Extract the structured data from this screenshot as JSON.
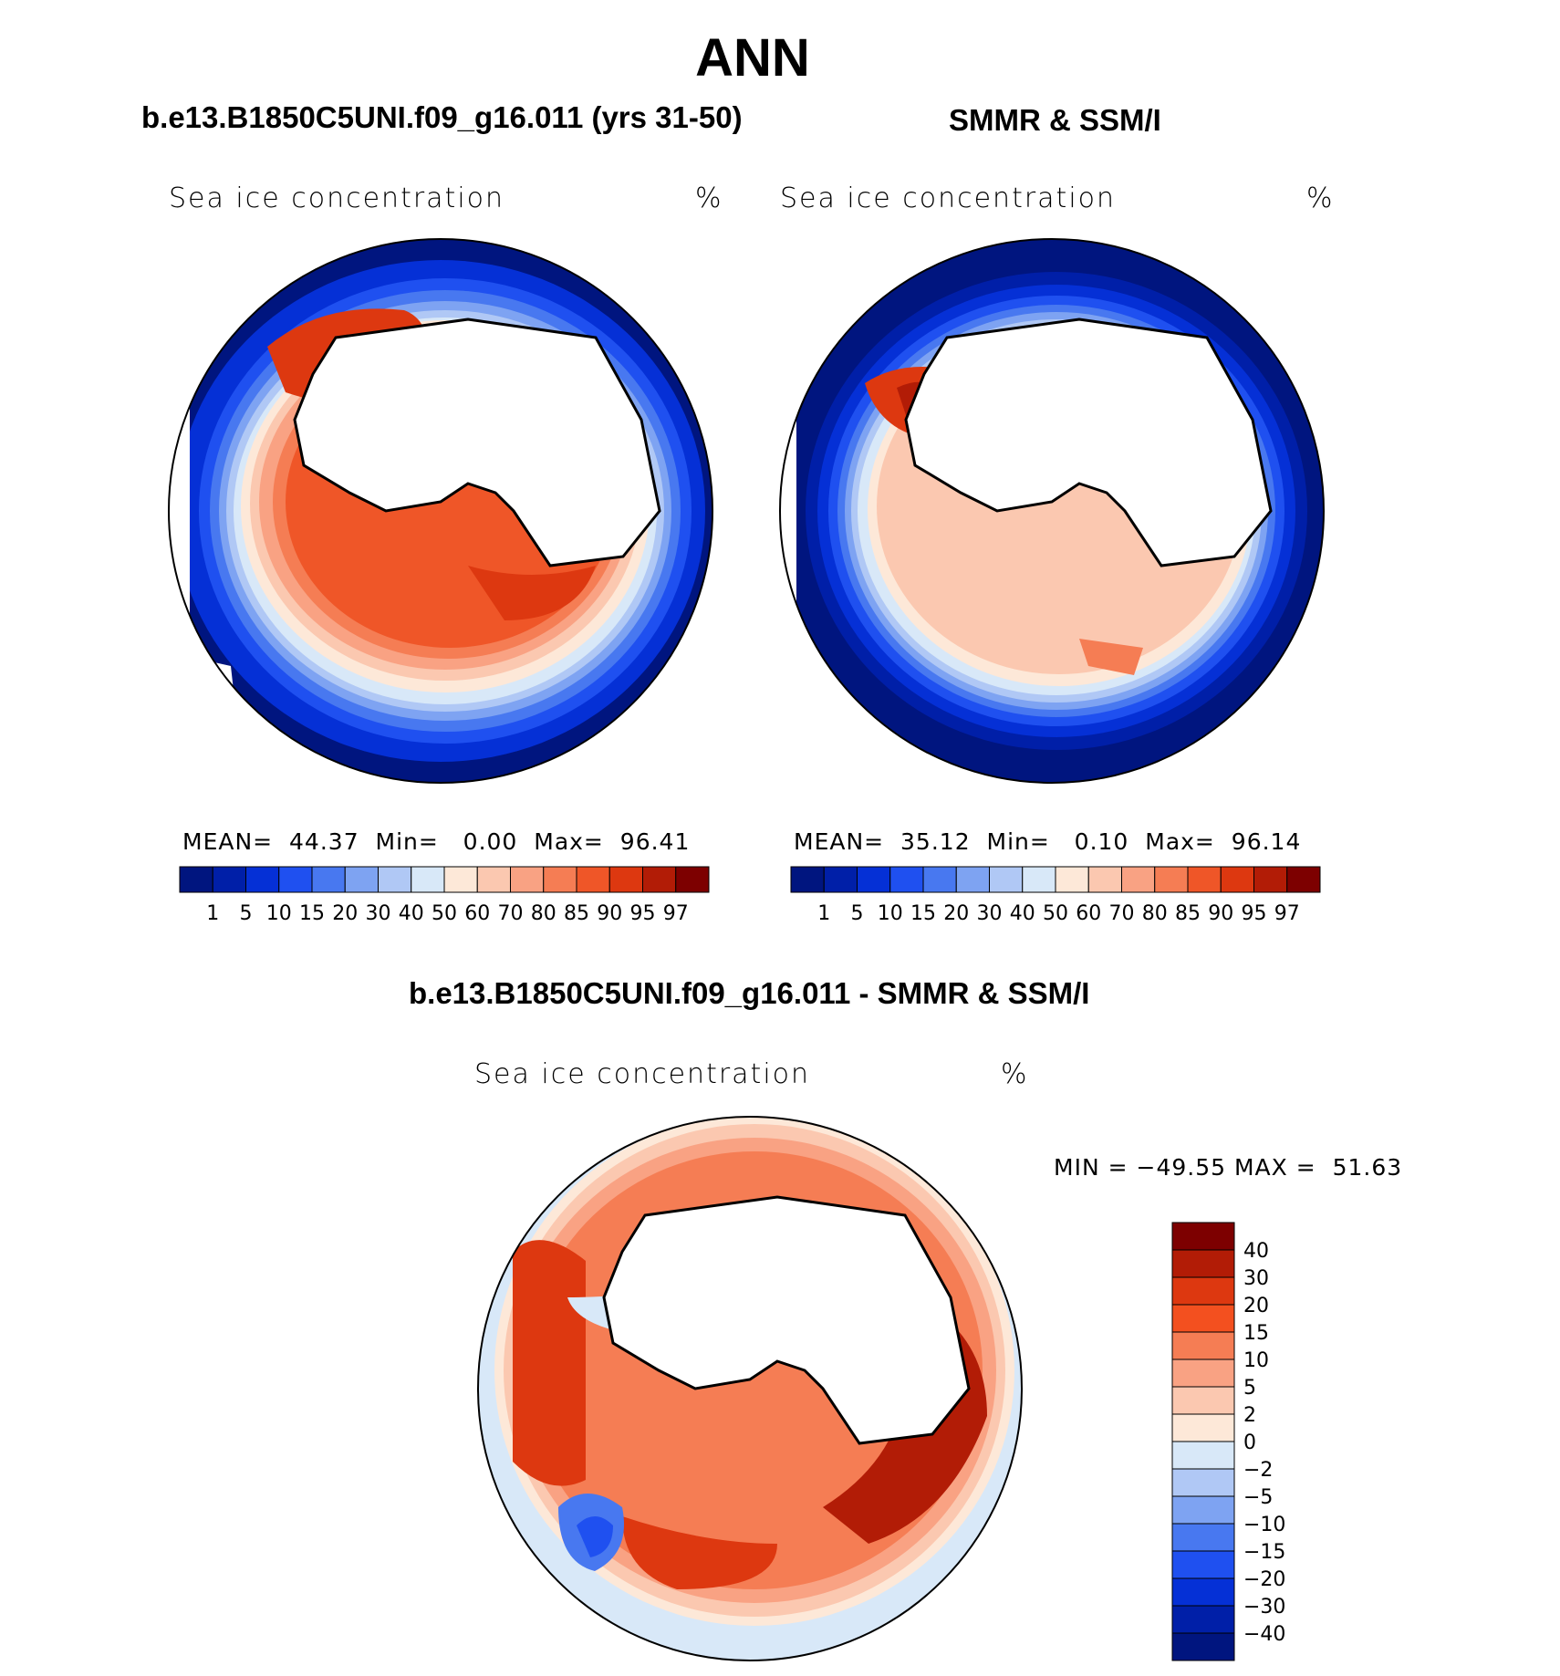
{
  "title": "ANN",
  "panels": [
    {
      "id": "model",
      "header": "b.e13.B1850C5UNI.f09_g16.011 (yrs 31-50)",
      "variable": "Sea ice concentration",
      "units": "%",
      "stats": {
        "mean_label": "MEAN=",
        "mean": "44.37",
        "min_label": "Min=",
        "min": "0.00",
        "max_label": "Max=",
        "max": "96.41"
      }
    },
    {
      "id": "obs",
      "header": "SMMR & SSM/I",
      "variable": "Sea ice concentration",
      "units": "%",
      "stats": {
        "mean_label": "MEAN=",
        "mean": "35.12",
        "min_label": "Min=",
        "min": "0.10",
        "max_label": "Max=",
        "max": "96.14"
      }
    },
    {
      "id": "diff",
      "header": "b.e13.B1850C5UNI.f09_g16.011 - SMMR & SSM/I",
      "variable": "Sea ice concentration",
      "units": "%",
      "stats": {
        "min_label": "MIN =",
        "min": "−49.55",
        "max_label": "MAX =",
        "max": "51.63"
      }
    }
  ],
  "chart_data": {
    "type": "heatmap",
    "projection": "south polar stereographic",
    "concentration_colorbar": {
      "labels": [
        "1",
        "5",
        "10",
        "15",
        "20",
        "30",
        "40",
        "50",
        "60",
        "70",
        "80",
        "85",
        "90",
        "95",
        "97"
      ],
      "colors": [
        "#00157f",
        "#001fa8",
        "#0530d6",
        "#1f50f0",
        "#4878f0",
        "#7ea3f2",
        "#b0c8f5",
        "#d8e8f8",
        "#fde8d8",
        "#fbc8b0",
        "#f9a283",
        "#f57d54",
        "#ef5628",
        "#dd3810",
        "#b21c06",
        "#7d0000"
      ]
    },
    "difference_colorbar": {
      "labels": [
        "40",
        "30",
        "20",
        "15",
        "10",
        "5",
        "2",
        "0",
        "−2",
        "−5",
        "−10",
        "−15",
        "−20",
        "−30",
        "−40"
      ],
      "colors": [
        "#7d0000",
        "#b21c06",
        "#dd3810",
        "#f3501f",
        "#f57d54",
        "#f9a283",
        "#fbc8b0",
        "#fde8d8",
        "#d8e8f8",
        "#b0c8f5",
        "#7ea3f2",
        "#4878f0",
        "#1f50f0",
        "#0530d6",
        "#001fa8",
        "#00157f"
      ]
    }
  }
}
